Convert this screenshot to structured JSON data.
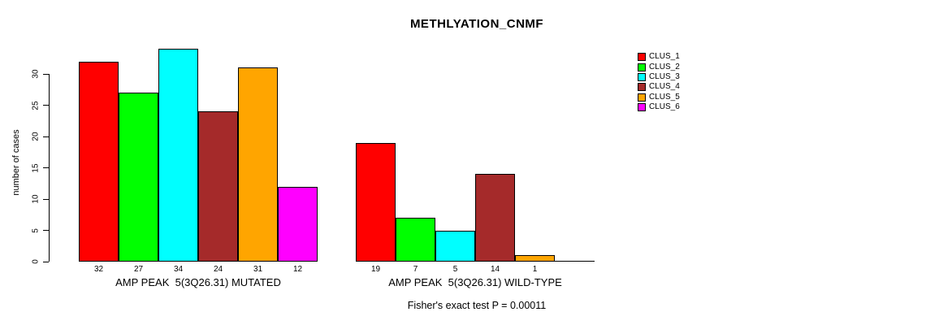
{
  "chart_data": {
    "type": "bar",
    "title": "METHLYATION_CNMF",
    "ylabel": "number of cases",
    "xlabel": "",
    "ylim": [
      0,
      34
    ],
    "yticks": [
      0,
      5,
      10,
      15,
      20,
      25,
      30
    ],
    "grid": false,
    "legend_position": "right",
    "series_colors": [
      "#ff0000",
      "#00ff00",
      "#00ffff",
      "#a52a2a",
      "#ffa500",
      "#ff00ff"
    ],
    "groups": [
      {
        "label": "AMP PEAK  5(3Q26.31) MUTATED",
        "values": [
          32,
          27,
          34,
          24,
          31,
          12
        ],
        "bar_labels": [
          "32",
          "27",
          "34",
          "24",
          "31",
          "12"
        ]
      },
      {
        "label": "AMP PEAK  5(3Q26.31) WILD-TYPE",
        "values": [
          19,
          7,
          5,
          14,
          1,
          0
        ],
        "bar_labels": [
          "19",
          "7",
          "5",
          "14",
          "1",
          ""
        ]
      }
    ],
    "legend": [
      {
        "label": "CLUS_1",
        "color": "#ff0000"
      },
      {
        "label": "CLUS_2",
        "color": "#00ff00"
      },
      {
        "label": "CLUS_3",
        "color": "#00ffff"
      },
      {
        "label": "CLUS_4",
        "color": "#a52a2a"
      },
      {
        "label": "CLUS_5",
        "color": "#ffa500"
      },
      {
        "label": "CLUS_6",
        "color": "#ff00ff"
      }
    ],
    "footnote": "Fisher's exact test P = 0.00011",
    "text_color": "#000000",
    "background_color": "#ffffff"
  }
}
